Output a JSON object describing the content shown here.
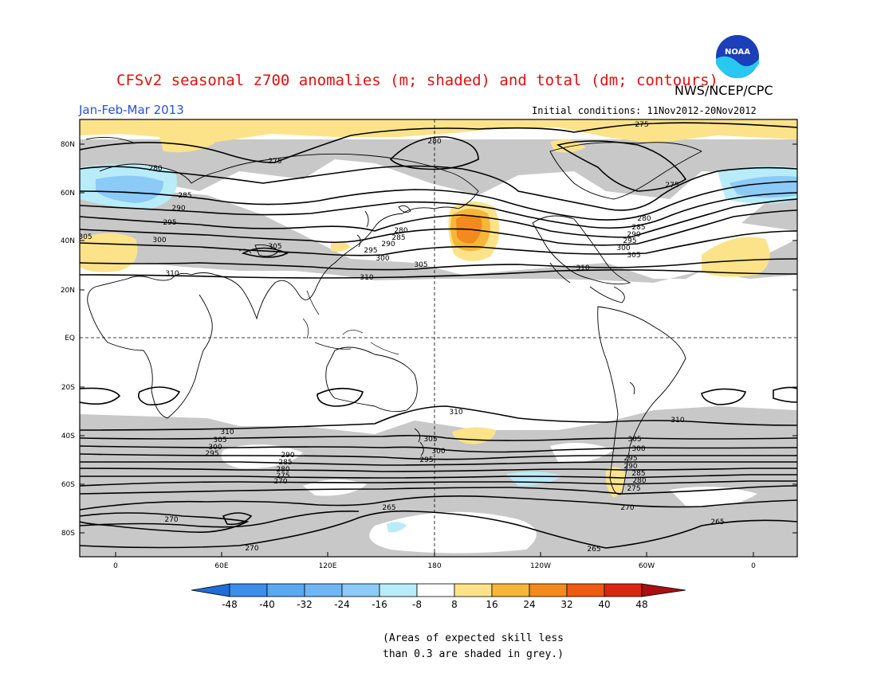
{
  "header": {
    "title": "CFSv2 seasonal z700 anomalies (m; shaded) and total (dm; contours)",
    "org": "NWS/NCEP/CPC",
    "logo_text": "NOAA",
    "period": "Jan-Feb-Mar 2013",
    "initial_conditions": "Initial conditions: 11Nov2012-20Nov2012"
  },
  "axes": {
    "lat_labels": [
      "80N",
      "60N",
      "40N",
      "20N",
      "EQ",
      "20S",
      "40S",
      "60S",
      "80S"
    ],
    "lon_labels": [
      "0",
      "60E",
      "120E",
      "180",
      "120W",
      "60W",
      "0"
    ]
  },
  "contour_labels": {
    "northern": [
      "275",
      "280",
      "285",
      "290",
      "295",
      "300",
      "305",
      "310"
    ],
    "southern": [
      "310",
      "305",
      "300",
      "295",
      "290",
      "285",
      "280",
      "275",
      "270",
      "265"
    ]
  },
  "colorbar": {
    "ticks": [
      "-48",
      "-40",
      "-32",
      "-24",
      "-16",
      "-8",
      "8",
      "16",
      "24",
      "32",
      "40",
      "48"
    ],
    "colors": [
      "#1e6ed8",
      "#3c8ee8",
      "#5aa8f2",
      "#8ccaf8",
      "#b8ecf8",
      "#ffffff",
      "#fce38a",
      "#f6b638",
      "#f28a1e",
      "#ee5a14",
      "#d82612",
      "#aa0e0e"
    ]
  },
  "legend_note": {
    "line1": "(Areas of expected skill less",
    "line2": "than 0.3 are shaded in grey.)"
  },
  "colors": {
    "skill_grey": "#c8c8c8",
    "title_red": "#e01010",
    "period_blue": "#2a50d8"
  }
}
